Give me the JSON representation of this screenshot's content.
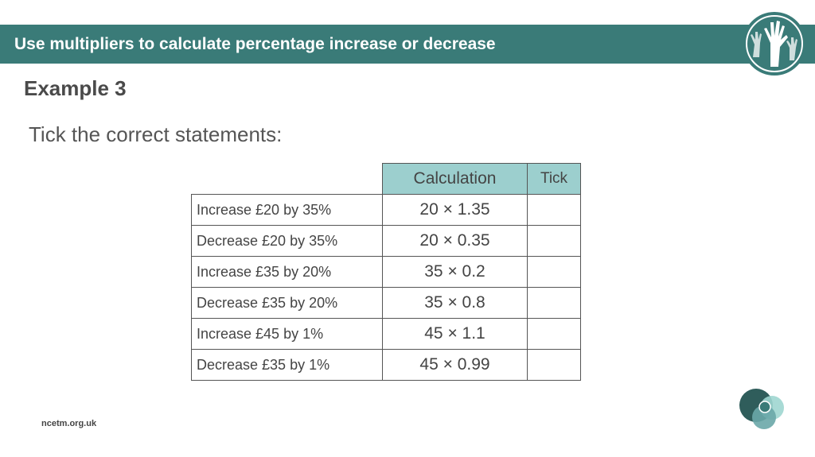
{
  "header": {
    "title": "Use multipliers to calculate percentage increase or decrease",
    "logo_icon": "raised-hands-logo-icon"
  },
  "example_heading": "Example 3",
  "instruction": "Tick the correct statements:",
  "table": {
    "headers": {
      "calculation": "Calculation",
      "tick": "Tick"
    },
    "rows": [
      {
        "statement": "Increase £20 by 35%",
        "calculation": "20 × 1.35",
        "tick": ""
      },
      {
        "statement": "Decrease £20 by 35%",
        "calculation": "20 × 0.35",
        "tick": ""
      },
      {
        "statement": "Increase £35 by 20%",
        "calculation": "35 × 0.2",
        "tick": ""
      },
      {
        "statement": "Decrease £35 by 20%",
        "calculation": "35 × 0.8",
        "tick": ""
      },
      {
        "statement": "Increase £45 by 1%",
        "calculation": "45 × 1.1",
        "tick": ""
      },
      {
        "statement": "Decrease £35 by 1%",
        "calculation": "45 × 0.99",
        "tick": ""
      }
    ]
  },
  "footer": {
    "url": "ncetm.org.uk",
    "logo_icon": "ncetm-circles-logo-icon"
  },
  "colors": {
    "header_bar": "#3a7b78",
    "table_header": "#9ccfce",
    "text": "#444444"
  }
}
